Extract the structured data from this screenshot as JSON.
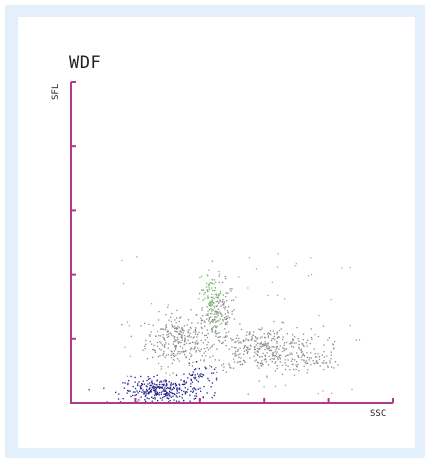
{
  "chart_data": {
    "type": "scatter",
    "title": "WDF",
    "xlabel": "SSC",
    "ylabel": "SFL",
    "xlim": [
      0,
      100
    ],
    "ylim": [
      0,
      100
    ],
    "x_ticks": 5,
    "y_ticks": 5,
    "grid": false,
    "axis_color": "#b03a8e",
    "clusters": [
      {
        "color": "#8c8c8c",
        "center": [
          33,
          20
        ],
        "spread": [
          5,
          4
        ],
        "count": 260
      },
      {
        "color": "#8c8c8c",
        "center": [
          45,
          28
        ],
        "spread": [
          3,
          5
        ],
        "count": 170
      },
      {
        "color": "#8c8c8c",
        "center": [
          60,
          17
        ],
        "spread": [
          9,
          3.5
        ],
        "count": 380
      },
      {
        "color": "#8c8c8c",
        "center": [
          75,
          13
        ],
        "spread": [
          4,
          1.5
        ],
        "count": 50
      },
      {
        "color": "#66cc55",
        "center": [
          44,
          32
        ],
        "spread": [
          2,
          5
        ],
        "count": 55
      },
      {
        "color": "#22228a",
        "center": [
          28,
          4
        ],
        "spread": [
          6,
          2
        ],
        "count": 320
      },
      {
        "color": "#22228a",
        "center": [
          40,
          9
        ],
        "spread": [
          3,
          1.5
        ],
        "count": 40
      }
    ]
  }
}
